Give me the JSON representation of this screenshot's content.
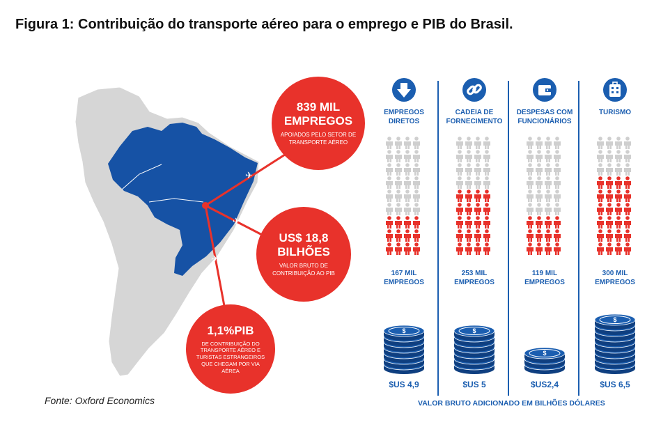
{
  "title": "Figura 1: Contribuição do transporte aéreo para o emprego e PIB do Brasil.",
  "colors": {
    "blue": "#1b5eb0",
    "red": "#e8322b",
    "grey_person": "#cfcfcf",
    "land": "#d6d6d6",
    "brazil": "#1652a5"
  },
  "bubbles": {
    "jobs": {
      "value": "839 MIL EMPREGOS",
      "caption": "APOIADOS PELO SETOR DE TRANSPORTE AÉREO"
    },
    "gva": {
      "value": "US$ 18,8 BILHÕES",
      "caption": "VALOR BRUTO DE CONTRIBUIÇÃO AO PIB"
    },
    "gdp": {
      "value": "1,1%PIB",
      "caption": "DE CONTRIBUIÇÃO DO TRANSPORTE AÉREO E TURISTAS ESTRANGEIROS QUE CHEGAM POR VIA AÉREA"
    }
  },
  "source": "Fonte: Oxford Economics",
  "columns": [
    {
      "icon": "arrow-down-icon",
      "category": "EMPREGOS DIRETOS",
      "jobs": "167 MIL EMPREGOS",
      "gva": "$US 4,9",
      "gva_value": 4.9,
      "red_rows": 3
    },
    {
      "icon": "chain-link-icon",
      "category": "CADEIA DE FORNECIMENTO",
      "jobs": "253 MIL EMPREGOS",
      "gva": "$US 5",
      "gva_value": 5,
      "red_rows": 5
    },
    {
      "icon": "wallet-icon",
      "category": "DESPESAS COM FUNCIONÁRIOS",
      "jobs": "119 MIL EMPREGOS",
      "gva": "$US2,4",
      "gva_value": 2.4,
      "red_rows": 3
    },
    {
      "icon": "suitcase-icon",
      "category": "TURISMO",
      "jobs": "300 MIL EMPREGOS",
      "gva": "$US 6,5",
      "gva_value": 6.5,
      "red_rows": 6
    }
  ],
  "footer": "VALOR BRUTO ADICIONADO EM BILHÕES DÓLARES"
}
